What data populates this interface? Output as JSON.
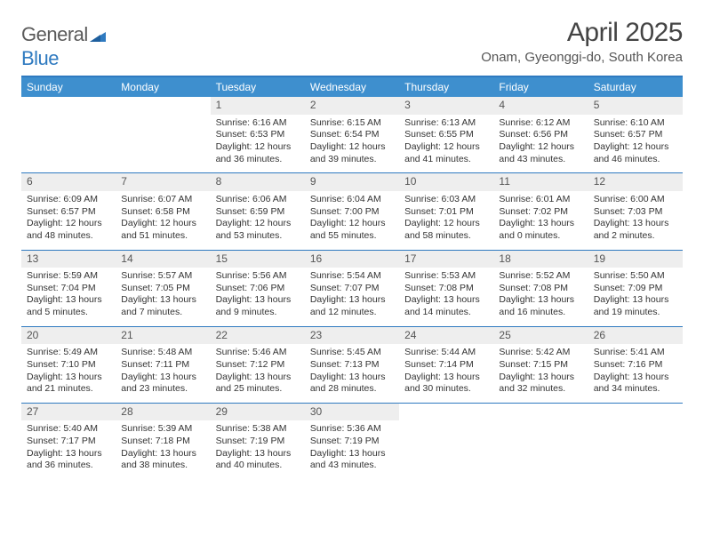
{
  "brand": {
    "name_gray": "General",
    "name_blue": "Blue"
  },
  "title": "April 2025",
  "location": "Onam, Gyeonggi-do, South Korea",
  "colors": {
    "accent": "#2f7ac0",
    "header_bg": "#3e8fce",
    "daynum_bg": "#eeeeee",
    "text": "#333333",
    "logo_gray": "#5a5a5a"
  },
  "dayNames": [
    "Sunday",
    "Monday",
    "Tuesday",
    "Wednesday",
    "Thursday",
    "Friday",
    "Saturday"
  ],
  "weeks": [
    [
      {
        "empty": true
      },
      {
        "empty": true
      },
      {
        "num": "1",
        "sunrise": "Sunrise: 6:16 AM",
        "sunset": "Sunset: 6:53 PM",
        "day1": "Daylight: 12 hours",
        "day2": "and 36 minutes."
      },
      {
        "num": "2",
        "sunrise": "Sunrise: 6:15 AM",
        "sunset": "Sunset: 6:54 PM",
        "day1": "Daylight: 12 hours",
        "day2": "and 39 minutes."
      },
      {
        "num": "3",
        "sunrise": "Sunrise: 6:13 AM",
        "sunset": "Sunset: 6:55 PM",
        "day1": "Daylight: 12 hours",
        "day2": "and 41 minutes."
      },
      {
        "num": "4",
        "sunrise": "Sunrise: 6:12 AM",
        "sunset": "Sunset: 6:56 PM",
        "day1": "Daylight: 12 hours",
        "day2": "and 43 minutes."
      },
      {
        "num": "5",
        "sunrise": "Sunrise: 6:10 AM",
        "sunset": "Sunset: 6:57 PM",
        "day1": "Daylight: 12 hours",
        "day2": "and 46 minutes."
      }
    ],
    [
      {
        "num": "6",
        "sunrise": "Sunrise: 6:09 AM",
        "sunset": "Sunset: 6:57 PM",
        "day1": "Daylight: 12 hours",
        "day2": "and 48 minutes."
      },
      {
        "num": "7",
        "sunrise": "Sunrise: 6:07 AM",
        "sunset": "Sunset: 6:58 PM",
        "day1": "Daylight: 12 hours",
        "day2": "and 51 minutes."
      },
      {
        "num": "8",
        "sunrise": "Sunrise: 6:06 AM",
        "sunset": "Sunset: 6:59 PM",
        "day1": "Daylight: 12 hours",
        "day2": "and 53 minutes."
      },
      {
        "num": "9",
        "sunrise": "Sunrise: 6:04 AM",
        "sunset": "Sunset: 7:00 PM",
        "day1": "Daylight: 12 hours",
        "day2": "and 55 minutes."
      },
      {
        "num": "10",
        "sunrise": "Sunrise: 6:03 AM",
        "sunset": "Sunset: 7:01 PM",
        "day1": "Daylight: 12 hours",
        "day2": "and 58 minutes."
      },
      {
        "num": "11",
        "sunrise": "Sunrise: 6:01 AM",
        "sunset": "Sunset: 7:02 PM",
        "day1": "Daylight: 13 hours",
        "day2": "and 0 minutes."
      },
      {
        "num": "12",
        "sunrise": "Sunrise: 6:00 AM",
        "sunset": "Sunset: 7:03 PM",
        "day1": "Daylight: 13 hours",
        "day2": "and 2 minutes."
      }
    ],
    [
      {
        "num": "13",
        "sunrise": "Sunrise: 5:59 AM",
        "sunset": "Sunset: 7:04 PM",
        "day1": "Daylight: 13 hours",
        "day2": "and 5 minutes."
      },
      {
        "num": "14",
        "sunrise": "Sunrise: 5:57 AM",
        "sunset": "Sunset: 7:05 PM",
        "day1": "Daylight: 13 hours",
        "day2": "and 7 minutes."
      },
      {
        "num": "15",
        "sunrise": "Sunrise: 5:56 AM",
        "sunset": "Sunset: 7:06 PM",
        "day1": "Daylight: 13 hours",
        "day2": "and 9 minutes."
      },
      {
        "num": "16",
        "sunrise": "Sunrise: 5:54 AM",
        "sunset": "Sunset: 7:07 PM",
        "day1": "Daylight: 13 hours",
        "day2": "and 12 minutes."
      },
      {
        "num": "17",
        "sunrise": "Sunrise: 5:53 AM",
        "sunset": "Sunset: 7:08 PM",
        "day1": "Daylight: 13 hours",
        "day2": "and 14 minutes."
      },
      {
        "num": "18",
        "sunrise": "Sunrise: 5:52 AM",
        "sunset": "Sunset: 7:08 PM",
        "day1": "Daylight: 13 hours",
        "day2": "and 16 minutes."
      },
      {
        "num": "19",
        "sunrise": "Sunrise: 5:50 AM",
        "sunset": "Sunset: 7:09 PM",
        "day1": "Daylight: 13 hours",
        "day2": "and 19 minutes."
      }
    ],
    [
      {
        "num": "20",
        "sunrise": "Sunrise: 5:49 AM",
        "sunset": "Sunset: 7:10 PM",
        "day1": "Daylight: 13 hours",
        "day2": "and 21 minutes."
      },
      {
        "num": "21",
        "sunrise": "Sunrise: 5:48 AM",
        "sunset": "Sunset: 7:11 PM",
        "day1": "Daylight: 13 hours",
        "day2": "and 23 minutes."
      },
      {
        "num": "22",
        "sunrise": "Sunrise: 5:46 AM",
        "sunset": "Sunset: 7:12 PM",
        "day1": "Daylight: 13 hours",
        "day2": "and 25 minutes."
      },
      {
        "num": "23",
        "sunrise": "Sunrise: 5:45 AM",
        "sunset": "Sunset: 7:13 PM",
        "day1": "Daylight: 13 hours",
        "day2": "and 28 minutes."
      },
      {
        "num": "24",
        "sunrise": "Sunrise: 5:44 AM",
        "sunset": "Sunset: 7:14 PM",
        "day1": "Daylight: 13 hours",
        "day2": "and 30 minutes."
      },
      {
        "num": "25",
        "sunrise": "Sunrise: 5:42 AM",
        "sunset": "Sunset: 7:15 PM",
        "day1": "Daylight: 13 hours",
        "day2": "and 32 minutes."
      },
      {
        "num": "26",
        "sunrise": "Sunrise: 5:41 AM",
        "sunset": "Sunset: 7:16 PM",
        "day1": "Daylight: 13 hours",
        "day2": "and 34 minutes."
      }
    ],
    [
      {
        "num": "27",
        "sunrise": "Sunrise: 5:40 AM",
        "sunset": "Sunset: 7:17 PM",
        "day1": "Daylight: 13 hours",
        "day2": "and 36 minutes."
      },
      {
        "num": "28",
        "sunrise": "Sunrise: 5:39 AM",
        "sunset": "Sunset: 7:18 PM",
        "day1": "Daylight: 13 hours",
        "day2": "and 38 minutes."
      },
      {
        "num": "29",
        "sunrise": "Sunrise: 5:38 AM",
        "sunset": "Sunset: 7:19 PM",
        "day1": "Daylight: 13 hours",
        "day2": "and 40 minutes."
      },
      {
        "num": "30",
        "sunrise": "Sunrise: 5:36 AM",
        "sunset": "Sunset: 7:19 PM",
        "day1": "Daylight: 13 hours",
        "day2": "and 43 minutes."
      },
      {
        "empty": true
      },
      {
        "empty": true
      },
      {
        "empty": true
      }
    ]
  ]
}
